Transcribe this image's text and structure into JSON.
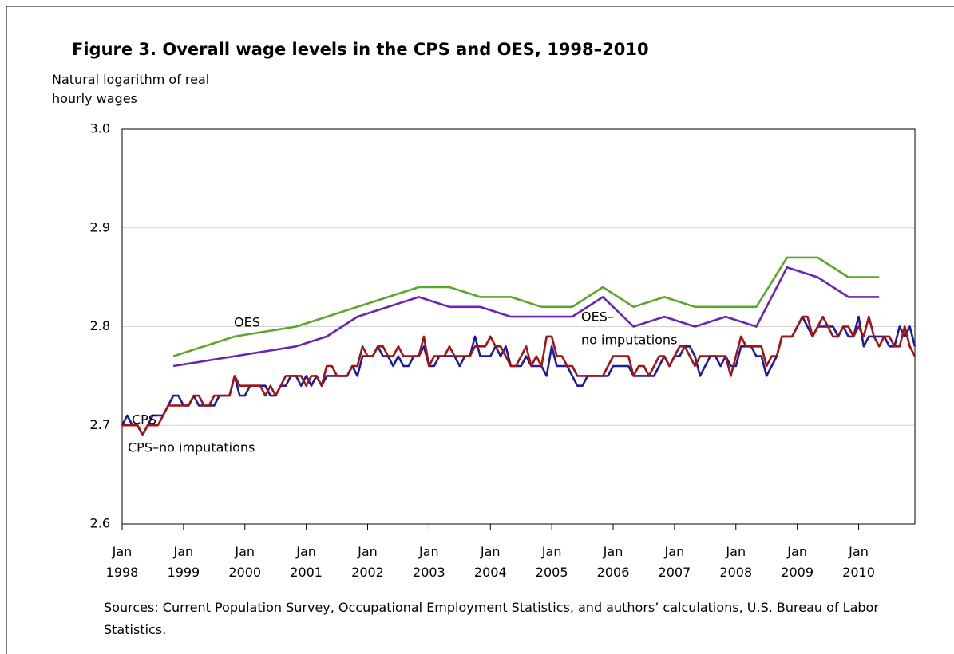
{
  "chart_data": {
    "type": "line",
    "title": "Figure 3. Overall wage levels in the CPS and OES, 1998–2010",
    "y_label": "Natural logarithm of real hourly wages",
    "source": "Sources: Current Population Survey, Occupational Employment Statistics, and authors’ calculations, U.S. Bureau of Labor Statistics.",
    "annotations": [
      "OES",
      "OES–",
      "no imputations",
      "CPS",
      "CPS–no imputations"
    ],
    "ylim": [
      2.6,
      3.0
    ],
    "yticks": [
      2.6,
      2.7,
      2.8,
      2.9,
      {
        "value": 3,
        "label": "3.0"
      }
    ],
    "grid": true,
    "xlim": [
      "1998-01",
      "2010-12"
    ],
    "xticks": [
      {
        "value": "1998-01",
        "label": "Jan 1998"
      },
      {
        "value": "1999-01",
        "label": "Jan 1999"
      },
      {
        "value": "2000-01",
        "label": "Jan 2000"
      },
      {
        "value": "2001-01",
        "label": "Jan 2001"
      },
      {
        "value": "2002-01",
        "label": "Jan 2002"
      },
      {
        "value": "2003-01",
        "label": "Jan 2003"
      },
      {
        "value": "2004-01",
        "label": "Jan 2004"
      },
      {
        "value": "2005-01",
        "label": "Jan 2005"
      },
      {
        "value": "2006-01",
        "label": "Jan 2006"
      },
      {
        "value": "2007-01",
        "label": "Jan 2007"
      },
      {
        "value": "2008-01",
        "label": "Jan 2008"
      },
      {
        "value": "2009-01",
        "label": "Jan 2009"
      },
      {
        "value": "2010-01",
        "label": "Jan 2010"
      }
    ],
    "x": [
      "1998-01",
      "1998-02",
      "1998-03",
      "1998-04",
      "1998-05",
      "1998-06",
      "1998-07",
      "1998-08",
      "1998-09",
      "1998-10",
      "1998-11",
      "1998-12",
      "1999-01",
      "1999-02",
      "1999-03",
      "1999-04",
      "1999-05",
      "1999-06",
      "1999-07",
      "1999-08",
      "1999-09",
      "1999-10",
      "1999-11",
      "1999-12",
      "2000-01",
      "2000-02",
      "2000-03",
      "2000-04",
      "2000-05",
      "2000-06",
      "2000-07",
      "2000-08",
      "2000-09",
      "2000-10",
      "2000-11",
      "2000-12",
      "2001-01",
      "2001-02",
      "2001-03",
      "2001-04",
      "2001-05",
      "2001-06",
      "2001-07",
      "2001-08",
      "2001-09",
      "2001-10",
      "2001-11",
      "2001-12",
      "2002-01",
      "2002-02",
      "2002-03",
      "2002-04",
      "2002-05",
      "2002-06",
      "2002-07",
      "2002-08",
      "2002-09",
      "2002-10",
      "2002-11",
      "2002-12",
      "2003-01",
      "2003-02",
      "2003-03",
      "2003-04",
      "2003-05",
      "2003-06",
      "2003-07",
      "2003-08",
      "2003-09",
      "2003-10",
      "2003-11",
      "2003-12",
      "2004-01",
      "2004-02",
      "2004-03",
      "2004-04",
      "2004-05",
      "2004-06",
      "2004-07",
      "2004-08",
      "2004-09",
      "2004-10",
      "2004-11",
      "2004-12",
      "2005-01",
      "2005-02",
      "2005-03",
      "2005-04",
      "2005-05",
      "2005-06",
      "2005-07",
      "2005-08",
      "2005-09",
      "2005-10",
      "2005-11",
      "2005-12",
      "2006-01",
      "2006-02",
      "2006-03",
      "2006-04",
      "2006-05",
      "2006-06",
      "2006-07",
      "2006-08",
      "2006-09",
      "2006-10",
      "2006-11",
      "2006-12",
      "2007-01",
      "2007-02",
      "2007-03",
      "2007-04",
      "2007-05",
      "2007-06",
      "2007-07",
      "2007-08",
      "2007-09",
      "2007-10",
      "2007-11",
      "2007-12",
      "2008-01",
      "2008-02",
      "2008-03",
      "2008-04",
      "2008-05",
      "2008-06",
      "2008-07",
      "2008-08",
      "2008-09",
      "2008-10",
      "2008-11",
      "2008-12",
      "2009-01",
      "2009-02",
      "2009-03",
      "2009-04",
      "2009-05",
      "2009-06",
      "2009-07",
      "2009-08",
      "2009-09",
      "2009-10",
      "2009-11",
      "2009-12",
      "2010-01",
      "2010-02",
      "2010-03",
      "2010-04",
      "2010-05",
      "2010-06",
      "2010-07",
      "2010-08",
      "2010-09",
      "2010-10",
      "2010-11",
      "2010-12"
    ],
    "series": [
      {
        "name": "CPS",
        "color": "#1c1ca0",
        "values": [
          2.7,
          2.71,
          2.7,
          2.7,
          2.69,
          2.7,
          2.71,
          2.71,
          2.71,
          2.72,
          2.73,
          2.73,
          2.72,
          2.72,
          2.73,
          2.72,
          2.72,
          2.72,
          2.72,
          2.73,
          2.73,
          2.73,
          2.75,
          2.73,
          2.73,
          2.74,
          2.74,
          2.74,
          2.74,
          2.73,
          2.73,
          2.74,
          2.74,
          2.75,
          2.75,
          2.74,
          2.75,
          2.74,
          2.75,
          2.74,
          2.75,
          2.75,
          2.75,
          2.75,
          2.75,
          2.76,
          2.75,
          2.77,
          2.77,
          2.77,
          2.78,
          2.77,
          2.77,
          2.76,
          2.77,
          2.76,
          2.76,
          2.77,
          2.77,
          2.78,
          2.76,
          2.76,
          2.77,
          2.77,
          2.77,
          2.77,
          2.76,
          2.77,
          2.77,
          2.79,
          2.77,
          2.77,
          2.77,
          2.78,
          2.77,
          2.78,
          2.76,
          2.76,
          2.76,
          2.77,
          2.76,
          2.76,
          2.76,
          2.75,
          2.78,
          2.76,
          2.76,
          2.76,
          2.75,
          2.74,
          2.74,
          2.75,
          2.75,
          2.75,
          2.75,
          2.75,
          2.76,
          2.76,
          2.76,
          2.76,
          2.75,
          2.75,
          2.75,
          2.75,
          2.75,
          2.76,
          2.77,
          2.76,
          2.77,
          2.77,
          2.78,
          2.78,
          2.77,
          2.75,
          2.76,
          2.77,
          2.77,
          2.76,
          2.77,
          2.76,
          2.76,
          2.78,
          2.78,
          2.78,
          2.77,
          2.77,
          2.75,
          2.76,
          2.77,
          2.79,
          2.79,
          2.79,
          2.8,
          2.81,
          2.8,
          2.79,
          2.8,
          2.8,
          2.8,
          2.8,
          2.79,
          2.8,
          2.79,
          2.79,
          2.81,
          2.78,
          2.79,
          2.79,
          2.79,
          2.79,
          2.78,
          2.78,
          2.8,
          2.79,
          2.8,
          2.78
        ]
      },
      {
        "name": "CPS–no imputations",
        "color": "#a01414",
        "values": [
          2.7,
          2.7,
          2.7,
          2.7,
          2.69,
          2.7,
          2.7,
          2.7,
          2.71,
          2.72,
          2.72,
          2.72,
          2.72,
          2.72,
          2.73,
          2.73,
          2.72,
          2.72,
          2.73,
          2.73,
          2.73,
          2.73,
          2.75,
          2.74,
          2.74,
          2.74,
          2.74,
          2.74,
          2.73,
          2.74,
          2.73,
          2.74,
          2.75,
          2.75,
          2.75,
          2.75,
          2.74,
          2.75,
          2.75,
          2.74,
          2.76,
          2.76,
          2.75,
          2.75,
          2.75,
          2.76,
          2.76,
          2.78,
          2.77,
          2.77,
          2.78,
          2.78,
          2.77,
          2.77,
          2.78,
          2.77,
          2.77,
          2.77,
          2.77,
          2.79,
          2.76,
          2.77,
          2.77,
          2.77,
          2.78,
          2.77,
          2.77,
          2.77,
          2.77,
          2.78,
          2.78,
          2.78,
          2.79,
          2.78,
          2.78,
          2.77,
          2.76,
          2.76,
          2.77,
          2.78,
          2.76,
          2.77,
          2.76,
          2.79,
          2.79,
          2.77,
          2.77,
          2.76,
          2.76,
          2.75,
          2.75,
          2.75,
          2.75,
          2.75,
          2.75,
          2.76,
          2.77,
          2.77,
          2.77,
          2.77,
          2.75,
          2.76,
          2.76,
          2.75,
          2.76,
          2.77,
          2.77,
          2.76,
          2.77,
          2.78,
          2.78,
          2.77,
          2.76,
          2.77,
          2.77,
          2.77,
          2.77,
          2.77,
          2.77,
          2.75,
          2.77,
          2.79,
          2.78,
          2.78,
          2.78,
          2.78,
          2.76,
          2.77,
          2.77,
          2.79,
          2.79,
          2.79,
          2.8,
          2.81,
          2.81,
          2.79,
          2.8,
          2.81,
          2.8,
          2.79,
          2.79,
          2.8,
          2.8,
          2.79,
          2.8,
          2.79,
          2.81,
          2.79,
          2.78,
          2.79,
          2.79,
          2.78,
          2.78,
          2.8,
          2.78,
          2.77
        ]
      },
      {
        "name": "OES",
        "color": "#5aa82a",
        "x": [
          "1998-11",
          "1999-11",
          "2000-11",
          "2001-11",
          "2002-11",
          "2003-05",
          "2003-11",
          "2004-05",
          "2004-11",
          "2005-05",
          "2005-11",
          "2006-05",
          "2006-11",
          "2007-05",
          "2007-11",
          "2008-05",
          "2008-11",
          "2009-05",
          "2009-11",
          "2010-05"
        ],
        "values": [
          2.77,
          2.79,
          2.8,
          2.82,
          2.84,
          2.84,
          2.83,
          2.83,
          2.82,
          2.82,
          2.84,
          2.82,
          2.83,
          2.82,
          2.82,
          2.82,
          2.87,
          2.87,
          2.85,
          2.85
        ]
      },
      {
        "name": "OES–no imputations",
        "color": "#6a24b4",
        "x": [
          "1998-11",
          "1999-11",
          "2000-11",
          "2001-05",
          "2001-11",
          "2002-05",
          "2002-11",
          "2003-05",
          "2003-11",
          "2004-05",
          "2004-11",
          "2005-05",
          "2005-11",
          "2006-05",
          "2006-11",
          "2007-05",
          "2007-11",
          "2008-05",
          "2008-11",
          "2009-05",
          "2009-11",
          "2010-05"
        ],
        "values": [
          2.76,
          2.77,
          2.78,
          2.79,
          2.81,
          2.82,
          2.83,
          2.82,
          2.82,
          2.81,
          2.81,
          2.81,
          2.83,
          2.8,
          2.81,
          2.8,
          2.81,
          2.8,
          2.86,
          2.85,
          2.83,
          2.83
        ]
      }
    ]
  }
}
